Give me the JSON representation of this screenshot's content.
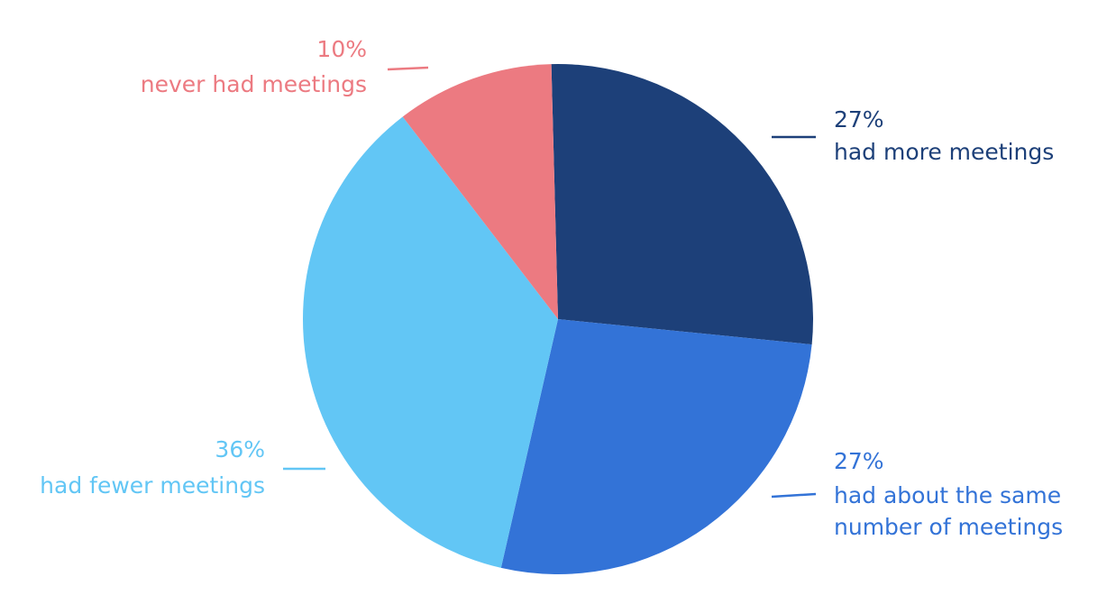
{
  "chart_data": {
    "type": "pie",
    "slices": [
      {
        "value": 27,
        "percent_label": "27%",
        "label_lines": [
          "had more meetings"
        ],
        "color": "#1d4079"
      },
      {
        "value": 27,
        "percent_label": "27%",
        "label_lines": [
          "had about the same",
          "number of meetings"
        ],
        "color": "#3373d7"
      },
      {
        "value": 36,
        "percent_label": "36%",
        "label_lines": [
          "had fewer meetings"
        ],
        "color": "#62c6f5"
      },
      {
        "value": 10,
        "percent_label": "10%",
        "label_lines": [
          "never had meetings"
        ],
        "color": "#ec7a81"
      }
    ]
  }
}
